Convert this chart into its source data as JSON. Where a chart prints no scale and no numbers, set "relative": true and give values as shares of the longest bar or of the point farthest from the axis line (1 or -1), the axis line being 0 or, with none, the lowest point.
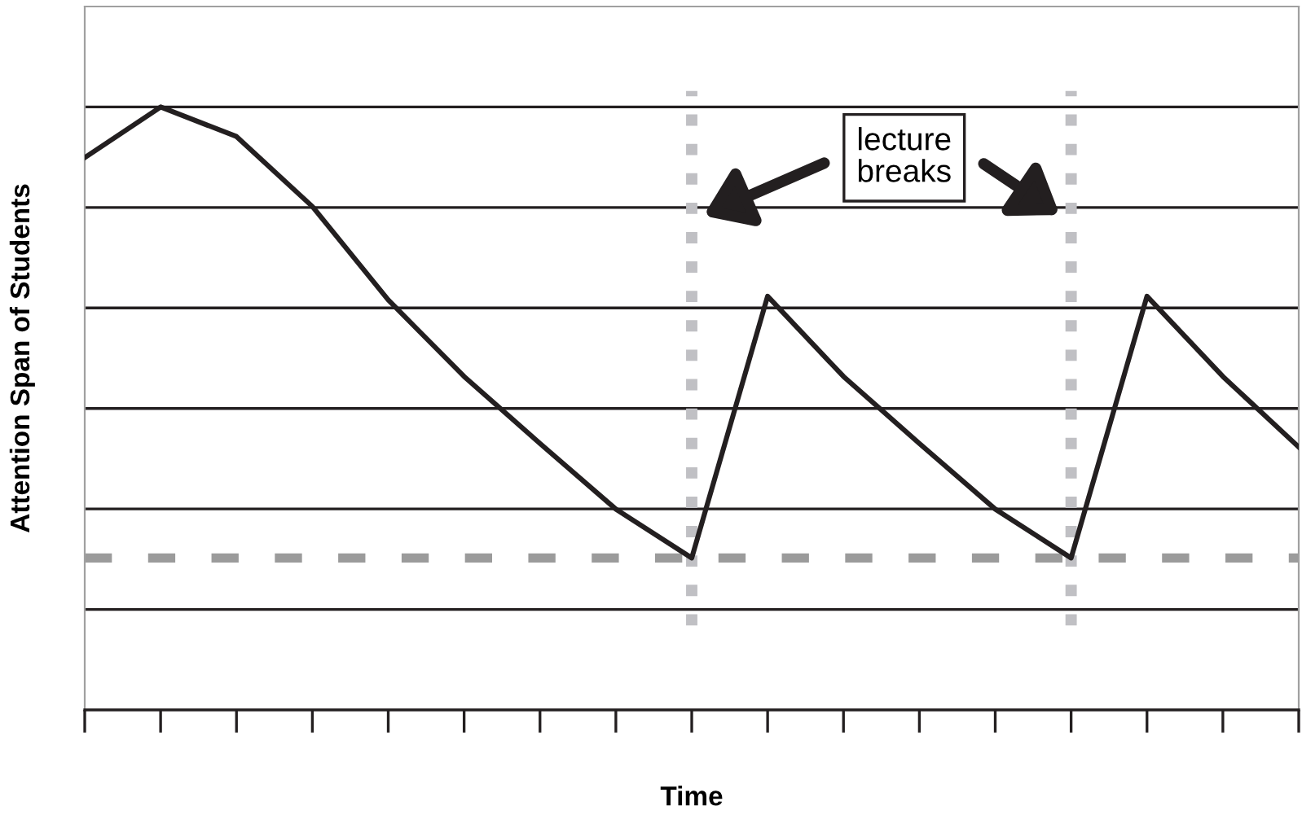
{
  "chart_data": {
    "type": "line",
    "relative": true,
    "xlabel": "Time",
    "ylabel": "Attention Span of Students",
    "categories": [
      null,
      null,
      null,
      null,
      null,
      null,
      null,
      null,
      null,
      null,
      null,
      null,
      null,
      null,
      null,
      null,
      null
    ],
    "series": [
      {
        "color": "#231f20",
        "values": [
          0.916,
          1,
          0.951,
          0.835,
          0.68,
          0.553,
          0.442,
          0.333,
          0.252,
          0.686,
          0.553,
          0.442,
          0.333,
          0.252,
          0.686,
          0.553,
          0.436
        ]
      }
    ],
    "grid": "y",
    "marker": "none",
    "line_style": "solid",
    "ref_lines": [
      {
        "axis": "y",
        "value": 0.252,
        "color": "#9b9b9b",
        "line_style": "dashed"
      }
    ],
    "annotations": [
      "lecture breaks"
    ]
  }
}
